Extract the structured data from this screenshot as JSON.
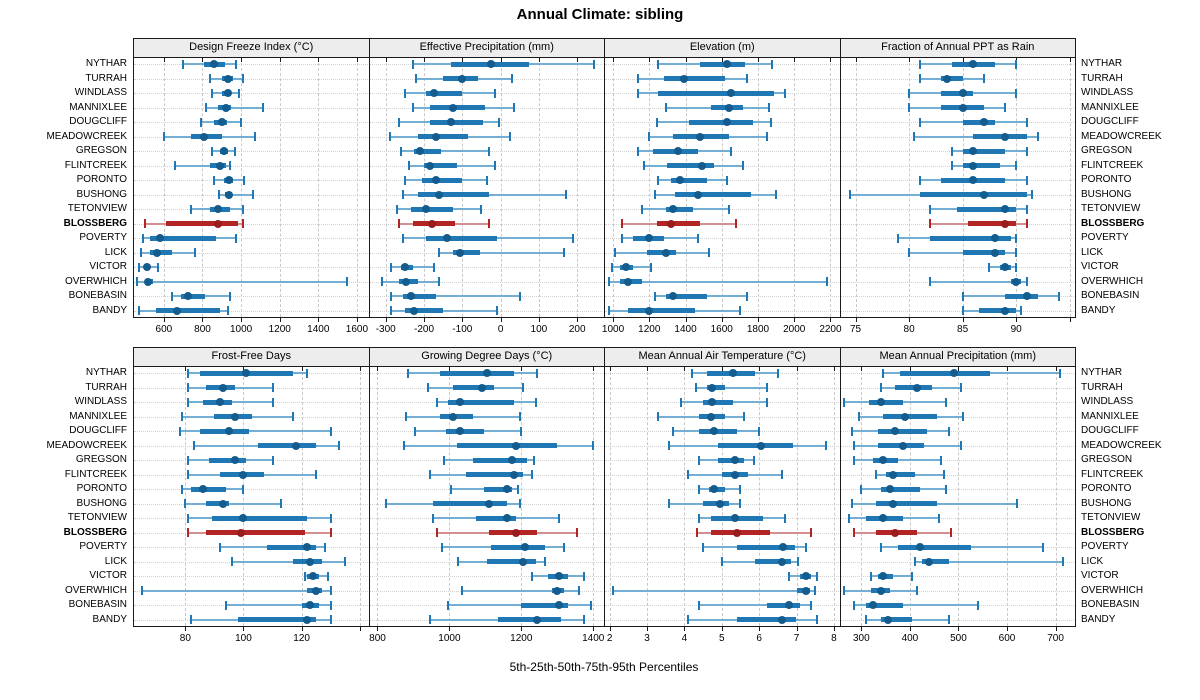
{
  "title": "Annual Climate: sibling",
  "footer": "5th-25th-50th-75th-95th Percentiles",
  "colors": {
    "blue": "#1f77b4",
    "blue_dot": "#135c8d",
    "blue_whisker": "#74aed4",
    "red": "#b32424",
    "red_dot": "#9a1c1c",
    "red_whisker": "#d49090",
    "grid": "#c9c9c9",
    "header_bg": "#ededed",
    "border": "#1a1a1a"
  },
  "chart_data": {
    "type": "scatter",
    "variant": "trellis-percentile-intervals",
    "percentiles": [
      5,
      25,
      50,
      75,
      95
    ],
    "stations": [
      "NYTHAR",
      "TURRAH",
      "WINDLASS",
      "MANNIXLEE",
      "DOUGCLIFF",
      "MEADOWCREEK",
      "GREGSON",
      "FLINTCREEK",
      "PORONTO",
      "BUSHONG",
      "TETONVIEW",
      "BLOSSBERG",
      "POVERTY",
      "LICK",
      "VICTOR",
      "OVERWHICH",
      "BONEBASIN",
      "BANDY"
    ],
    "highlight_station": "BLOSSBERG",
    "panels": [
      {
        "title": "Design Freeze Index (°C)",
        "ticks": [
          600,
          800,
          1000,
          1200,
          1400,
          1600
        ],
        "grid_extra": [],
        "range": [
          440,
          1660
        ],
        "values": [
          [
            700,
            810,
            860,
            915,
            975
          ],
          [
            840,
            900,
            930,
            960,
            1010
          ],
          [
            850,
            900,
            930,
            950,
            990
          ],
          [
            820,
            880,
            920,
            950,
            1115
          ],
          [
            790,
            860,
            900,
            925,
            1000
          ],
          [
            600,
            740,
            810,
            900,
            1070
          ],
          [
            850,
            890,
            910,
            930,
            970
          ],
          [
            660,
            840,
            890,
            920,
            945
          ],
          [
            860,
            910,
            935,
            960,
            1015
          ],
          [
            885,
            915,
            935,
            955,
            1060
          ],
          [
            740,
            840,
            880,
            940,
            1010
          ],
          [
            500,
            610,
            880,
            985,
            1010
          ],
          [
            490,
            530,
            580,
            870,
            975
          ],
          [
            480,
            530,
            565,
            640,
            760
          ],
          [
            470,
            495,
            510,
            530,
            570
          ],
          [
            460,
            500,
            520,
            545,
            1550
          ],
          [
            640,
            690,
            725,
            815,
            940
          ],
          [
            470,
            560,
            670,
            890,
            930
          ]
        ]
      },
      {
        "title": "Effective Precipitation (mm)",
        "ticks": [
          -300,
          -200,
          -100,
          0,
          100,
          200
        ],
        "grid_extra": [],
        "range": [
          -345,
          270
        ],
        "values": [
          [
            -230,
            -130,
            -25,
            75,
            245
          ],
          [
            -220,
            -150,
            -100,
            -60,
            30
          ],
          [
            -250,
            -195,
            -175,
            -100,
            -15
          ],
          [
            -230,
            -185,
            -125,
            -40,
            35
          ],
          [
            -265,
            -185,
            -130,
            -45,
            -5
          ],
          [
            -290,
            -215,
            -170,
            -85,
            25
          ],
          [
            -260,
            -225,
            -210,
            -155,
            -30
          ],
          [
            -240,
            -200,
            -185,
            -115,
            -15
          ],
          [
            -250,
            -205,
            -170,
            -100,
            -35
          ],
          [
            -255,
            -215,
            -160,
            -30,
            170
          ],
          [
            -270,
            -235,
            -195,
            -125,
            -50
          ],
          [
            -265,
            -230,
            -180,
            -120,
            -30
          ],
          [
            -255,
            -195,
            -140,
            -10,
            190
          ],
          [
            -160,
            -125,
            -105,
            -55,
            165
          ],
          [
            -285,
            -260,
            -250,
            -230,
            -175
          ],
          [
            -310,
            -265,
            -248,
            -215,
            -160
          ],
          [
            -285,
            -255,
            -235,
            -170,
            50
          ],
          [
            -285,
            -250,
            -225,
            -150,
            -10
          ]
        ]
      },
      {
        "title": "Elevation (m)",
        "ticks": [
          1000,
          1200,
          1400,
          1600,
          1800,
          2000,
          2200
        ],
        "grid_extra": [],
        "range": [
          950,
          2250
        ],
        "values": [
          [
            1250,
            1480,
            1630,
            1730,
            1880
          ],
          [
            1140,
            1280,
            1390,
            1620,
            1740
          ],
          [
            1140,
            1250,
            1650,
            1890,
            1950
          ],
          [
            1290,
            1540,
            1640,
            1720,
            1860
          ],
          [
            1240,
            1420,
            1630,
            1770,
            1870
          ],
          [
            1200,
            1330,
            1480,
            1640,
            1850
          ],
          [
            1140,
            1220,
            1360,
            1470,
            1650
          ],
          [
            1170,
            1300,
            1490,
            1560,
            1720
          ],
          [
            1250,
            1320,
            1370,
            1520,
            1630
          ],
          [
            1230,
            1340,
            1470,
            1760,
            1900
          ],
          [
            1160,
            1290,
            1330,
            1440,
            1640
          ],
          [
            1050,
            1240,
            1320,
            1480,
            1680
          ],
          [
            1050,
            1110,
            1200,
            1280,
            1470
          ],
          [
            1010,
            1190,
            1290,
            1350,
            1530
          ],
          [
            995,
            1040,
            1070,
            1110,
            1210
          ],
          [
            980,
            1040,
            1080,
            1160,
            2180
          ],
          [
            1230,
            1290,
            1330,
            1520,
            1740
          ],
          [
            980,
            1080,
            1200,
            1450,
            1700
          ]
        ]
      },
      {
        "title": "Fraction of Annual PPT as Rain",
        "ticks": [
          75,
          80,
          85,
          90
        ],
        "grid_extra": [
          95
        ],
        "range": [
          73.5,
          95.5
        ],
        "values": [
          [
            81,
            84,
            86,
            88,
            90
          ],
          [
            81,
            83,
            83.5,
            85,
            87
          ],
          [
            80,
            83,
            85,
            86,
            90
          ],
          [
            80,
            83,
            85,
            87,
            89
          ],
          [
            81,
            85,
            87,
            88,
            91
          ],
          [
            80.5,
            86,
            89,
            91,
            92
          ],
          [
            84,
            85,
            86,
            89,
            91
          ],
          [
            84,
            85,
            86,
            88.5,
            90
          ],
          [
            81,
            83,
            86,
            89,
            91
          ],
          [
            74.5,
            81,
            87,
            91,
            91.5
          ],
          [
            82,
            84.5,
            89,
            90,
            91
          ],
          [
            82,
            85.5,
            89,
            90,
            91
          ],
          [
            79,
            82,
            88,
            89.5,
            90
          ],
          [
            80,
            85,
            88,
            89,
            90
          ],
          [
            87.5,
            88.5,
            89,
            89.5,
            90
          ],
          [
            82,
            89.5,
            90,
            90.5,
            91
          ],
          [
            85,
            89,
            91,
            92,
            94
          ],
          [
            85,
            86.5,
            89,
            90,
            90.5
          ]
        ]
      },
      {
        "title": "Frost-Free Days",
        "ticks": [
          80,
          100,
          120
        ],
        "grid_extra": [
          140
        ],
        "range": [
          62,
          143
        ],
        "values": [
          [
            81,
            85,
            101,
            117,
            122
          ],
          [
            81,
            87,
            93,
            97,
            110
          ],
          [
            81,
            86,
            92,
            96,
            110
          ],
          [
            79,
            90,
            97,
            103,
            117
          ],
          [
            78,
            85,
            95,
            102,
            130
          ],
          [
            83,
            105,
            118,
            125,
            133
          ],
          [
            81,
            88,
            97,
            101,
            110
          ],
          [
            81,
            92,
            100,
            107,
            125
          ],
          [
            79,
            82,
            86,
            94,
            100
          ],
          [
            80,
            87,
            93,
            95,
            113
          ],
          [
            81,
            89,
            100,
            122,
            130
          ],
          [
            81,
            87,
            99,
            121,
            130
          ],
          [
            92,
            108,
            122,
            125,
            128
          ],
          [
            96,
            117,
            123,
            127,
            135
          ],
          [
            121,
            122,
            124,
            126,
            129
          ],
          [
            65,
            122,
            125,
            127,
            130
          ],
          [
            94,
            120,
            123,
            126,
            130
          ],
          [
            82,
            98,
            122,
            125,
            130
          ]
        ]
      },
      {
        "title": "Growing Degree Days (°C)",
        "ticks": [
          800,
          1000,
          1200,
          1400
        ],
        "grid_extra": [],
        "range": [
          775,
          1430
        ],
        "values": [
          [
            885,
            975,
            1105,
            1180,
            1245
          ],
          [
            940,
            1010,
            1090,
            1125,
            1205
          ],
          [
            965,
            995,
            1030,
            1180,
            1240
          ],
          [
            880,
            975,
            1010,
            1065,
            1195
          ],
          [
            905,
            990,
            1030,
            1095,
            1200
          ],
          [
            875,
            1020,
            1185,
            1300,
            1400
          ],
          [
            985,
            1065,
            1175,
            1215,
            1235
          ],
          [
            945,
            1045,
            1180,
            1205,
            1230
          ],
          [
            1005,
            1095,
            1160,
            1175,
            1190
          ],
          [
            825,
            955,
            1110,
            1160,
            1195
          ],
          [
            955,
            1075,
            1160,
            1185,
            1305
          ],
          [
            965,
            1110,
            1185,
            1245,
            1355
          ],
          [
            980,
            1115,
            1210,
            1265,
            1320
          ],
          [
            1025,
            1105,
            1205,
            1240,
            1265
          ],
          [
            1230,
            1275,
            1305,
            1330,
            1375
          ],
          [
            1035,
            1285,
            1300,
            1320,
            1360
          ],
          [
            995,
            1200,
            1305,
            1330,
            1395
          ],
          [
            945,
            1135,
            1245,
            1310,
            1375
          ]
        ]
      },
      {
        "title": "Mean Annual Air Temperature (°C)",
        "ticks": [
          2,
          3,
          4,
          5,
          6,
          7,
          8
        ],
        "grid_extra": [],
        "range": [
          1.85,
          8.15
        ],
        "values": [
          [
            4.2,
            4.6,
            5.3,
            5.9,
            6.5
          ],
          [
            4.3,
            4.6,
            4.75,
            5.1,
            6.2
          ],
          [
            3.9,
            4.5,
            4.75,
            5.3,
            6.2
          ],
          [
            3.3,
            4.4,
            4.7,
            5.1,
            5.6
          ],
          [
            3.7,
            4.4,
            4.8,
            5.4,
            6.0
          ],
          [
            3.6,
            4.9,
            6.05,
            6.9,
            7.8
          ],
          [
            4.4,
            4.9,
            5.35,
            5.6,
            5.85
          ],
          [
            4.1,
            5.0,
            5.35,
            5.7,
            6.6
          ],
          [
            4.4,
            4.65,
            4.8,
            5.1,
            5.5
          ],
          [
            3.6,
            4.5,
            4.95,
            5.2,
            5.5
          ],
          [
            4.4,
            4.7,
            5.35,
            6.1,
            6.7
          ],
          [
            4.35,
            4.7,
            5.4,
            6.3,
            7.4
          ],
          [
            4.5,
            5.4,
            6.65,
            6.95,
            7.25
          ],
          [
            5.0,
            5.9,
            6.6,
            6.85,
            7.05
          ],
          [
            6.8,
            7.1,
            7.25,
            7.4,
            7.55
          ],
          [
            2.1,
            7.0,
            7.25,
            7.35,
            7.5
          ],
          [
            4.4,
            6.2,
            6.8,
            7.1,
            7.4
          ],
          [
            4.1,
            5.4,
            6.6,
            7.0,
            7.55
          ]
        ]
      },
      {
        "title": "Mean Annual Precipitation (mm)",
        "ticks": [
          300,
          400,
          500,
          600,
          700
        ],
        "grid_extra": [],
        "range": [
          255,
          740
        ],
        "values": [
          [
            345,
            380,
            490,
            565,
            710
          ],
          [
            340,
            370,
            415,
            445,
            505
          ],
          [
            265,
            315,
            340,
            385,
            475
          ],
          [
            295,
            345,
            390,
            455,
            510
          ],
          [
            280,
            335,
            370,
            435,
            480
          ],
          [
            285,
            335,
            385,
            430,
            505
          ],
          [
            285,
            325,
            345,
            375,
            465
          ],
          [
            330,
            350,
            365,
            410,
            470
          ],
          [
            300,
            340,
            360,
            420,
            475
          ],
          [
            280,
            330,
            365,
            455,
            620
          ],
          [
            275,
            310,
            345,
            385,
            460
          ],
          [
            285,
            330,
            370,
            415,
            485
          ],
          [
            340,
            375,
            420,
            525,
            675
          ],
          [
            410,
            425,
            440,
            480,
            715
          ],
          [
            320,
            335,
            345,
            365,
            405
          ],
          [
            265,
            320,
            340,
            360,
            415
          ],
          [
            285,
            310,
            325,
            385,
            540
          ],
          [
            310,
            340,
            355,
            405,
            480
          ]
        ]
      }
    ]
  }
}
